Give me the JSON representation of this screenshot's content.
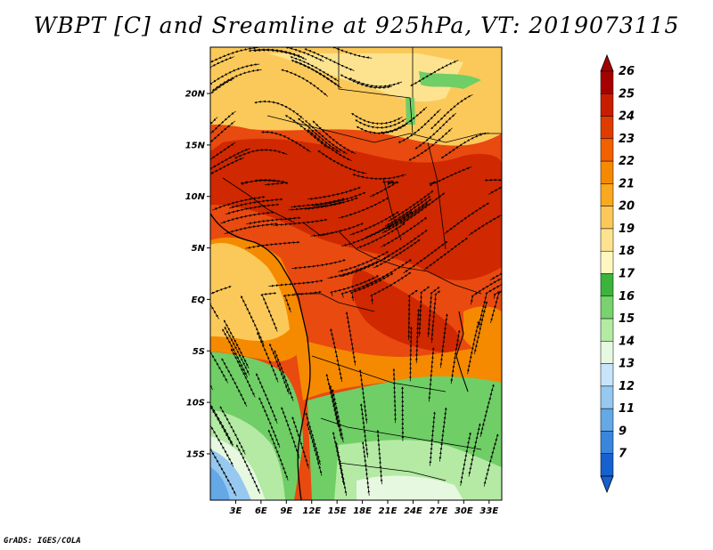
{
  "title": "WBPT [C] and Sreamline at 925hPa, VT: 2019073115",
  "footer": "GrADS: IGES/COLA",
  "map": {
    "lat_range": [
      -19.5,
      24.5
    ],
    "lon_range": [
      0,
      34.5
    ],
    "lat_ticks": [
      {
        "value": 20,
        "label": "20N"
      },
      {
        "value": 15,
        "label": "15N"
      },
      {
        "value": 10,
        "label": "10N"
      },
      {
        "value": 5,
        "label": "5N"
      },
      {
        "value": 0,
        "label": "EQ"
      },
      {
        "value": -5,
        "label": "5S"
      },
      {
        "value": -10,
        "label": "10S"
      },
      {
        "value": -15,
        "label": "15S"
      }
    ],
    "lon_ticks": [
      {
        "value": 3,
        "label": "3E"
      },
      {
        "value": 6,
        "label": "6E"
      },
      {
        "value": 9,
        "label": "9E"
      },
      {
        "value": 12,
        "label": "12E"
      },
      {
        "value": 15,
        "label": "15E"
      },
      {
        "value": 18,
        "label": "18E"
      },
      {
        "value": 21,
        "label": "21E"
      },
      {
        "value": 24,
        "label": "24E"
      },
      {
        "value": 27,
        "label": "27E"
      },
      {
        "value": 30,
        "label": "30E"
      },
      {
        "value": 33,
        "label": "33E"
      }
    ]
  },
  "colorbar": {
    "levels": [
      {
        "label": "26",
        "color": "#a50000"
      },
      {
        "label": "25",
        "color": "#c81e00"
      },
      {
        "label": "24",
        "color": "#e03c00"
      },
      {
        "label": "23",
        "color": "#f26000"
      },
      {
        "label": "22",
        "color": "#f58a00"
      },
      {
        "label": "21",
        "color": "#f9a820"
      },
      {
        "label": "20",
        "color": "#fbc95a"
      },
      {
        "label": "19",
        "color": "#fde38f"
      },
      {
        "label": "18",
        "color": "#fff7c0"
      },
      {
        "label": "17",
        "color": "#3cb43c"
      },
      {
        "label": "16",
        "color": "#78d26e"
      },
      {
        "label": "15",
        "color": "#b4eaa4"
      },
      {
        "label": "14",
        "color": "#e6f8e0"
      },
      {
        "label": "13",
        "color": "#c8e4fa"
      },
      {
        "label": "12",
        "color": "#96c8f0"
      },
      {
        "label": "11",
        "color": "#64a8e6"
      },
      {
        "label": "9",
        "color": "#3a86dc"
      },
      {
        "label": "7",
        "color": "#1660d0"
      }
    ],
    "top_color": "#a50000",
    "bottom_color": "#1660d0"
  },
  "field_colors": {
    "hot": "#d02800",
    "warm": "#e84a10",
    "orange": "#f58a00",
    "light_orange": "#fbc95a",
    "yellow": "#fde38f",
    "green": "#6fce66",
    "light_green": "#b4eaa4",
    "pale": "#e6f8e0",
    "blue": "#96c8f0",
    "deep_blue": "#64a8e6",
    "line": "#000000"
  }
}
